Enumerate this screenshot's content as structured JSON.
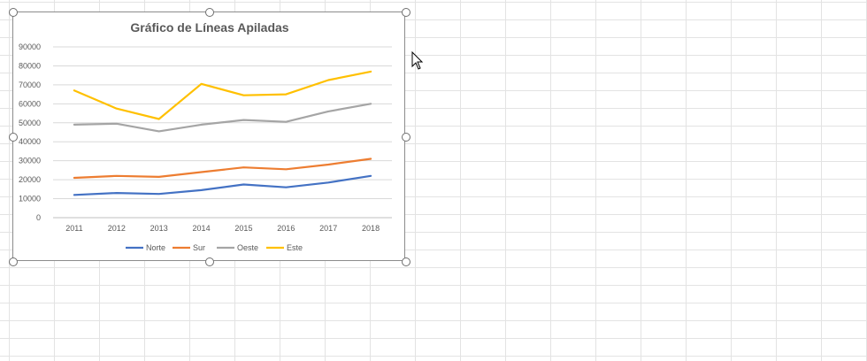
{
  "chart_data": {
    "type": "line",
    "title": "Gráfico de Líneas Apiladas",
    "categories": [
      "2011",
      "2012",
      "2013",
      "2014",
      "2015",
      "2016",
      "2017",
      "2018"
    ],
    "series": [
      {
        "name": "Norte",
        "color": "#4472c4",
        "values": [
          12000,
          13000,
          12500,
          14500,
          17500,
          16000,
          18500,
          22000
        ]
      },
      {
        "name": "Sur",
        "color": "#ed7d31",
        "values": [
          21000,
          22000,
          21500,
          24000,
          26500,
          25500,
          28000,
          31000
        ]
      },
      {
        "name": "Oeste",
        "color": "#a5a5a5",
        "values": [
          49000,
          49500,
          45500,
          49000,
          51500,
          50500,
          56000,
          60000
        ]
      },
      {
        "name": "Este",
        "color": "#ffc000",
        "values": [
          67000,
          57500,
          52000,
          70500,
          64500,
          65000,
          72500,
          77000
        ]
      }
    ],
    "yticks": [
      0,
      10000,
      20000,
      30000,
      40000,
      50000,
      60000,
      70000,
      80000,
      90000
    ],
    "ylim": [
      0,
      90000
    ],
    "grid": true,
    "legend_position": "bottom"
  },
  "ui": {
    "cursor_icon": "mouse-pointer-icon",
    "handle_icon": "resize-handle-icon"
  }
}
